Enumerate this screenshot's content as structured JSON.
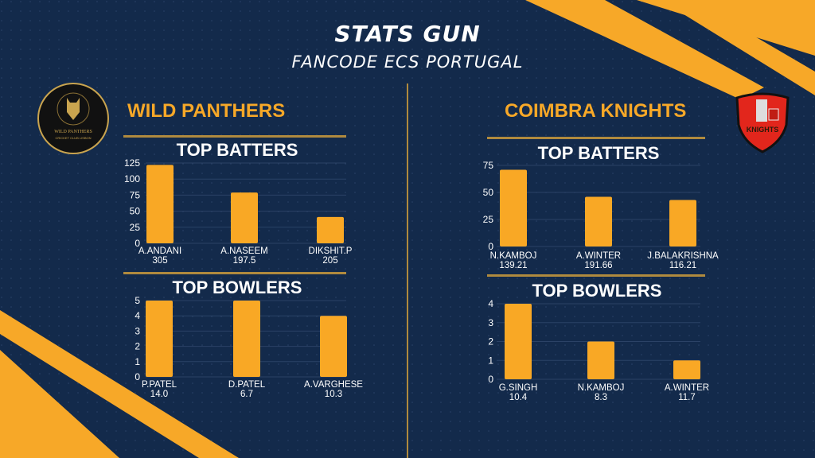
{
  "header": {
    "title": "STATS GUN",
    "subtitle": "FANCODE ECS PORTUGAL"
  },
  "colors": {
    "background": "#132a4b",
    "accent": "#f7a828",
    "bar": "#f9a825",
    "divider": "#b08a3e"
  },
  "teams": [
    {
      "name": "WILD PANTHERS",
      "logo_text": [
        "WILD PANTHERS",
        "CRICKET CLUB LISBON"
      ]
    },
    {
      "name": "COIMBRA KNIGHTS",
      "logo_text": [
        "KNIGHTS"
      ]
    }
  ],
  "chart_data": [
    {
      "type": "bar",
      "title": "TOP BATTERS",
      "team": "WILD PANTHERS",
      "categories": [
        "A.ANDANI",
        "A.NASEEM",
        "DIKSHIT.P"
      ],
      "sublabels": [
        "305",
        "197.5",
        "205"
      ],
      "values": [
        122,
        79,
        41
      ],
      "ylim": [
        0,
        125
      ],
      "yticks": [
        0,
        25,
        50,
        75,
        100,
        125
      ]
    },
    {
      "type": "bar",
      "title": "TOP BOWLERS",
      "team": "WILD PANTHERS",
      "categories": [
        "P.PATEL",
        "D.PATEL",
        "A.VARGHESE"
      ],
      "sublabels": [
        "14.0",
        "6.7",
        "10.3"
      ],
      "values": [
        5,
        5,
        4
      ],
      "ylim": [
        0,
        5
      ],
      "yticks": [
        0,
        1,
        2,
        3,
        4,
        5
      ]
    },
    {
      "type": "bar",
      "title": "TOP BATTERS",
      "team": "COIMBRA KNIGHTS",
      "categories": [
        "N.KAMBOJ",
        "A.WINTER",
        "J.BALAKRISHNA"
      ],
      "sublabels": [
        "139.21",
        "191.66",
        "116.21"
      ],
      "values": [
        71,
        46,
        43
      ],
      "ylim": [
        0,
        75
      ],
      "yticks": [
        0,
        25,
        50,
        75
      ]
    },
    {
      "type": "bar",
      "title": "TOP BOWLERS",
      "team": "COIMBRA KNIGHTS",
      "categories": [
        "G.SINGH",
        "N.KAMBOJ",
        "A.WINTER"
      ],
      "sublabels": [
        "10.4",
        "8.3",
        "11.7"
      ],
      "values": [
        4,
        2,
        1
      ],
      "ylim": [
        0,
        4
      ],
      "yticks": [
        0,
        1,
        2,
        3,
        4
      ]
    }
  ]
}
